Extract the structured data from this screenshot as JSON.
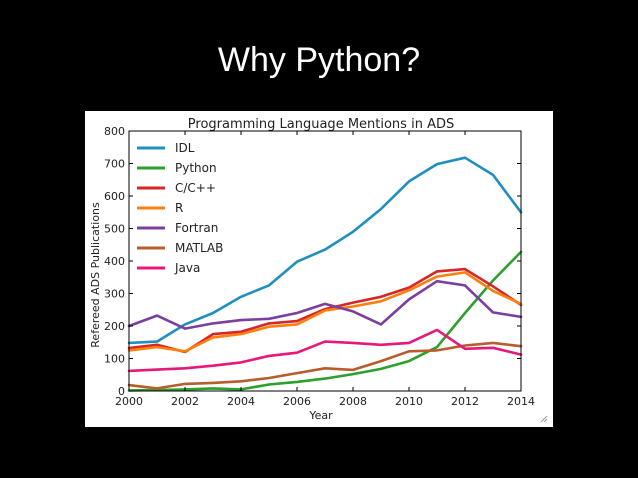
{
  "slide": {
    "title": "Why Python?"
  },
  "colors": {
    "background": "#000000",
    "title_text": "#ffffff",
    "panel": "#ffffff"
  },
  "chart_data": {
    "type": "line",
    "title": "Programming Language Mentions in ADS",
    "xlabel": "Year",
    "ylabel": "Refereed ADS Publications",
    "xlim": [
      2000,
      2014
    ],
    "ylim": [
      0,
      800
    ],
    "xticks": [
      2000,
      2002,
      2004,
      2006,
      2008,
      2010,
      2012,
      2014
    ],
    "yticks": [
      0,
      100,
      200,
      300,
      400,
      500,
      600,
      700,
      800
    ],
    "grid": false,
    "legend_position": "top-left",
    "x": [
      2000,
      2001,
      2002,
      2003,
      2004,
      2005,
      2006,
      2007,
      2008,
      2009,
      2010,
      2011,
      2012,
      2013,
      2014
    ],
    "series": [
      {
        "name": "IDL",
        "color": "#1f8fbf",
        "values": [
          148,
          152,
          205,
          240,
          290,
          325,
          398,
          435,
          490,
          560,
          645,
          698,
          718,
          665,
          550
        ]
      },
      {
        "name": "Python",
        "color": "#2ca02c",
        "values": [
          2,
          3,
          5,
          8,
          5,
          20,
          28,
          38,
          52,
          68,
          92,
          135,
          240,
          340,
          428
        ]
      },
      {
        "name": "C/C++",
        "color": "#d62728",
        "values": [
          132,
          142,
          120,
          175,
          182,
          208,
          215,
          252,
          272,
          290,
          318,
          368,
          375,
          322,
          265
        ]
      },
      {
        "name": "R",
        "color": "#ff7f0e",
        "values": [
          125,
          135,
          122,
          165,
          175,
          198,
          205,
          248,
          260,
          276,
          310,
          352,
          365,
          308,
          268
        ]
      },
      {
        "name": "Fortran",
        "color": "#7b3fa0",
        "values": [
          200,
          232,
          192,
          208,
          218,
          222,
          240,
          268,
          245,
          205,
          282,
          338,
          325,
          242,
          228
        ]
      },
      {
        "name": "MATLAB",
        "color": "#b85c2c",
        "values": [
          18,
          8,
          22,
          25,
          30,
          40,
          55,
          70,
          65,
          92,
          122,
          125,
          140,
          148,
          138
        ]
      },
      {
        "name": "Java",
        "color": "#e8177a",
        "values": [
          62,
          66,
          70,
          78,
          88,
          108,
          118,
          152,
          148,
          142,
          148,
          188,
          130,
          133,
          112
        ]
      }
    ]
  }
}
